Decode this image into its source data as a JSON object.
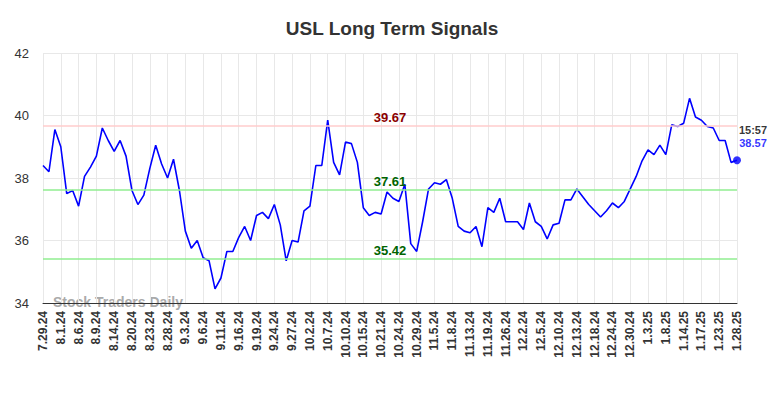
{
  "chart_data": {
    "type": "line",
    "title": "USL Long Term Signals",
    "watermark": "Stock Traders Daily",
    "color": "#0000ff",
    "grid": true,
    "ylim": [
      34,
      42
    ],
    "yticks": [
      34,
      36,
      38,
      40,
      42
    ],
    "categories": [
      "7.29.24",
      null,
      null,
      "8.1.24",
      null,
      null,
      "8.6.24",
      null,
      null,
      "8.9.24",
      null,
      null,
      "8.14.24",
      null,
      null,
      "8.20.24",
      null,
      null,
      "8.23.24",
      null,
      null,
      "8.28.24",
      null,
      null,
      "9.3.24",
      null,
      null,
      "9.6.24",
      null,
      null,
      "9.11.24",
      null,
      null,
      "9.16.24",
      null,
      null,
      "9.19.24",
      null,
      null,
      "9.24.24",
      null,
      null,
      "9.27.24",
      null,
      null,
      "10.2.24",
      null,
      null,
      "10.7.24",
      null,
      null,
      "10.10.24",
      null,
      null,
      "10.15.24",
      null,
      null,
      "10.21.24",
      null,
      null,
      "10.24.24",
      null,
      null,
      "10.29.24",
      null,
      null,
      "11.5.24",
      null,
      null,
      "11.8.24",
      null,
      null,
      "11.13.24",
      null,
      null,
      "11.19.24",
      null,
      null,
      "11.26.24",
      null,
      null,
      "12.2.24",
      null,
      null,
      "12.5.24",
      null,
      null,
      "12.10.24",
      null,
      null,
      "12.13.24",
      null,
      null,
      "12.18.24",
      null,
      null,
      "12.24.24",
      null,
      null,
      "12.30.24",
      null,
      null,
      "1.3.25",
      null,
      null,
      "1.8.25",
      null,
      null,
      "1.14.25",
      null,
      null,
      "1.17.25",
      null,
      null,
      "1.23.25",
      null,
      null,
      "1.28.25"
    ],
    "values": [
      38.4,
      38.2,
      39.55,
      39.0,
      37.5,
      37.6,
      37.1,
      38.05,
      38.35,
      38.7,
      39.6,
      39.2,
      38.85,
      39.2,
      38.7,
      37.6,
      37.15,
      37.45,
      38.3,
      39.05,
      38.45,
      38.0,
      38.6,
      37.6,
      36.3,
      35.75,
      36.0,
      35.45,
      35.35,
      34.45,
      34.8,
      35.65,
      35.65,
      36.1,
      36.45,
      36.0,
      36.8,
      36.9,
      36.7,
      37.15,
      36.5,
      35.35,
      36.0,
      35.95,
      36.95,
      37.1,
      38.4,
      38.4,
      39.85,
      38.5,
      38.1,
      39.15,
      39.1,
      38.5,
      37.05,
      36.8,
      36.9,
      36.85,
      37.55,
      37.35,
      37.25,
      37.8,
      35.9,
      35.65,
      36.6,
      37.65,
      37.85,
      37.8,
      37.95,
      37.35,
      36.45,
      36.3,
      36.25,
      36.45,
      35.8,
      37.05,
      36.9,
      37.35,
      36.6,
      36.6,
      36.6,
      36.35,
      37.2,
      36.6,
      36.45,
      36.05,
      36.5,
      36.55,
      37.3,
      37.3,
      37.65,
      37.4,
      37.15,
      36.95,
      36.75,
      36.95,
      37.2,
      37.05,
      37.25,
      37.65,
      38.05,
      38.55,
      38.9,
      38.75,
      39.05,
      38.75,
      39.7,
      39.65,
      39.75,
      40.55,
      39.95,
      39.85,
      39.65,
      39.6,
      39.2,
      39.2,
      38.5,
      38.57
    ],
    "annotations": [
      {
        "value": 39.67,
        "label": "39.67",
        "line_color": "#ffcccc",
        "label_color": "#8b0000"
      },
      {
        "value": 37.61,
        "label": "37.61",
        "line_color": "#90ee90",
        "label_color": "#006400"
      },
      {
        "value": 35.42,
        "label": "35.42",
        "line_color": "#90ee90",
        "label_color": "#006400"
      }
    ],
    "last_point": {
      "time": "15:57",
      "value": 38.57
    }
  }
}
